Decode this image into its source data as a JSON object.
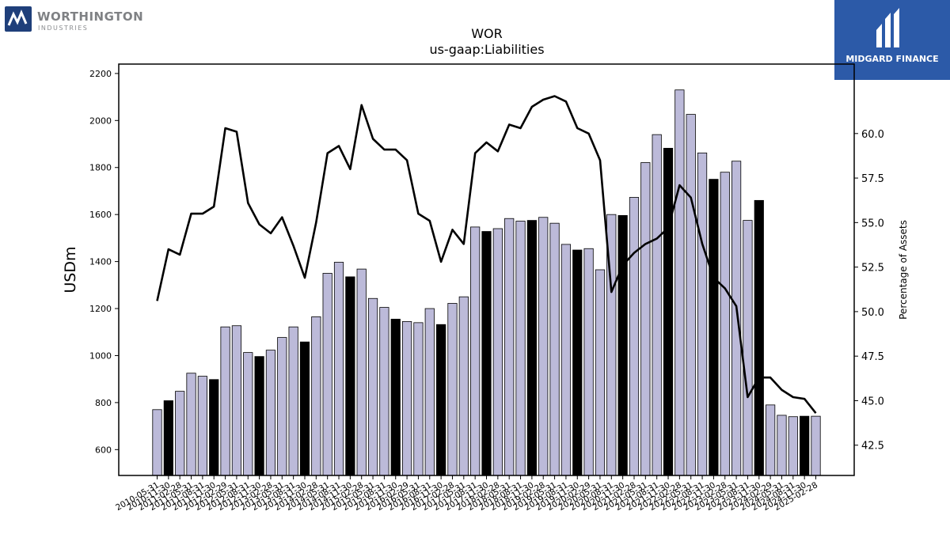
{
  "branding": {
    "left_logo_name": "WORTHINGTON",
    "left_logo_sub": "INDUSTRIES",
    "left_logo_color": "#1f3f7a",
    "right_logo_name": "MIDGARD FINANCE",
    "right_logo_bg": "#2c5aa8"
  },
  "chart_data": {
    "type": "bar",
    "title": "WOR",
    "subtitle": "us-gaap:Liabilities",
    "ylabel": "USDm",
    "y2label": "Percentage of Assets",
    "ylim": [
      490,
      2240
    ],
    "y2lim": [
      40.8,
      63.9
    ],
    "yticks": [
      600,
      800,
      1000,
      1200,
      1400,
      1600,
      1800,
      2000,
      2200
    ],
    "y2ticks": [
      42.5,
      45.0,
      47.5,
      50.0,
      52.5,
      55.0,
      57.5,
      60.0
    ],
    "colors": {
      "bar_light": "#bcbad9",
      "bar_dark": "#000000",
      "line": "#000000"
    },
    "categories": [
      "2010-05-31",
      "2010-11-30",
      "2011-02-28",
      "2011-05-31",
      "2011-08-31",
      "2011-11-30",
      "2012-02-29",
      "2012-05-31",
      "2012-08-31",
      "2012-11-30",
      "2013-02-28",
      "2013-05-31",
      "2013-08-31",
      "2013-11-30",
      "2014-02-28",
      "2014-05-31",
      "2014-08-31",
      "2014-11-30",
      "2015-02-28",
      "2015-05-31",
      "2015-08-31",
      "2015-11-30",
      "2016-02-29",
      "2016-05-31",
      "2016-08-31",
      "2016-11-30",
      "2017-02-28",
      "2017-05-31",
      "2017-08-31",
      "2017-11-30",
      "2018-02-28",
      "2018-05-31",
      "2018-08-31",
      "2018-11-30",
      "2019-02-28",
      "2019-05-31",
      "2019-08-31",
      "2019-11-30",
      "2020-02-29",
      "2020-05-31",
      "2020-08-31",
      "2020-11-30",
      "2021-02-28",
      "2021-05-31",
      "2021-08-31",
      "2021-11-30",
      "2022-02-28",
      "2022-05-31",
      "2022-08-31",
      "2022-11-30",
      "2023-02-28",
      "2023-05-31",
      "2023-08-31",
      "2023-11-30",
      "2024-02-29",
      "2024-05-31",
      "2024-08-31",
      "2024-11-30",
      "2025-02-28"
    ],
    "shown_tick_labels": [
      "2010-05-31",
      "2010-11-30",
      "2011-02-28",
      "2011-05-31",
      "2011-08-31",
      "2011-11-30",
      "2012-02-29",
      "2012-05-31",
      "2012-08-31",
      "2012-11-30",
      "2013-02-28",
      "2013-05-31",
      "2013-08-31",
      "2013-11-30",
      "2014-02-28",
      "2014-05-31",
      "2014-08-31",
      "2014-11-30",
      "2015-02-28",
      "2015-05-31",
      "2015-08-31",
      "2015-11-30",
      "2016-02-29",
      "2016-05-31",
      "2016-08-31",
      "2016-11-30",
      "2017-02-28",
      "2017-05-31",
      "2017-08-31",
      "2017-11-30",
      "2018-02-28",
      "2018-05-31",
      "2018-08-31",
      "2018-11-30",
      "2019-02-28",
      "2019-05-31",
      "2019-08-31",
      "2019-11-30",
      "2020-02-29",
      "2020-05-31",
      "2020-08-31",
      "2020-11-30",
      "2021-02-28",
      "2021-05-31",
      "2021-08-31",
      "2021-11-30",
      "2022-02-28",
      "2022-05-31",
      "2022-08-31",
      "2022-11-30",
      "2023-02-28",
      "2023-05-31",
      "2023-08-31",
      "2023-11-30",
      "2024-02-29",
      "2024-05-31",
      "2024-08-31",
      "2024-11-30",
      "2025-02-28"
    ],
    "series": [
      {
        "type": "bar",
        "values": [
          770,
          808,
          848,
          925,
          912,
          898,
          1122,
          1127,
          1013,
          996,
          1023,
          1077,
          1122,
          1058,
          1165,
          1350,
          1397,
          1335,
          1368,
          1243,
          1205,
          1155,
          1145,
          1140,
          1200,
          1132,
          1222,
          1250,
          1547,
          1528,
          1540,
          1583,
          1572,
          1575,
          1588,
          1563,
          1473,
          1449,
          1455,
          1365,
          1600,
          1596,
          1673,
          1821,
          1940,
          1882,
          2130,
          2026,
          1862,
          1750,
          1780,
          1827,
          1575,
          1660,
          790,
          746,
          740,
          742,
          742
        ],
        "dark": [
          false,
          true,
          false,
          false,
          false,
          true,
          false,
          false,
          false,
          true,
          false,
          false,
          false,
          true,
          false,
          false,
          false,
          true,
          false,
          false,
          false,
          true,
          false,
          false,
          false,
          true,
          false,
          false,
          false,
          true,
          false,
          false,
          false,
          true,
          false,
          false,
          false,
          true,
          false,
          false,
          false,
          true,
          false,
          false,
          false,
          true,
          false,
          false,
          false,
          true,
          false,
          false,
          false,
          true,
          false,
          false,
          false,
          true,
          false
        ]
      },
      {
        "type": "line",
        "axis": "right",
        "values": [
          50.6,
          53.5,
          53.2,
          55.5,
          55.5,
          55.9,
          60.3,
          60.1,
          56.1,
          54.9,
          54.4,
          55.3,
          53.7,
          51.9,
          55.0,
          58.9,
          59.3,
          58.0,
          61.6,
          59.7,
          59.1,
          59.1,
          58.5,
          55.5,
          55.1,
          52.8,
          54.6,
          53.8,
          58.9,
          59.5,
          59.0,
          60.5,
          60.3,
          61.5,
          61.9,
          62.1,
          61.8,
          60.3,
          60.0,
          58.5,
          51.1,
          52.6,
          53.3,
          53.8,
          54.1,
          54.7,
          57.1,
          56.4,
          53.8,
          51.9,
          51.3,
          50.3,
          45.2,
          46.3,
          46.3,
          45.6,
          45.2,
          45.1,
          44.3
        ]
      }
    ]
  }
}
